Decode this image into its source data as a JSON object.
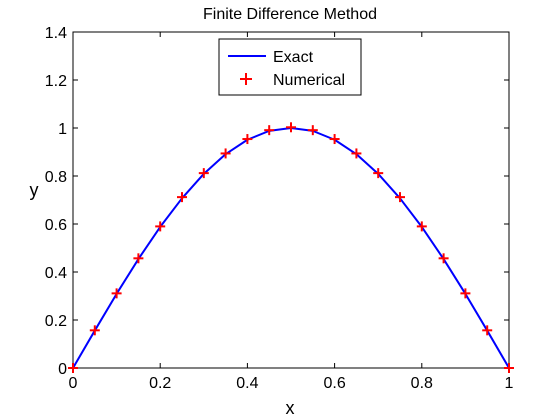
{
  "chart_data": {
    "type": "line",
    "title": "Finite Difference Method",
    "xlabel": "x",
    "ylabel": "y",
    "xlim": [
      0,
      1
    ],
    "ylim": [
      0,
      1.4
    ],
    "xticks": [
      "0",
      "0.2",
      "0.4",
      "0.6",
      "0.8",
      "1"
    ],
    "yticks": [
      "0",
      "0.2",
      "0.4",
      "0.6",
      "0.8",
      "1",
      "1.2",
      "1.4"
    ],
    "grid": false,
    "legend_position": "top-center",
    "series": [
      {
        "name": "Exact",
        "style": "line",
        "color": "#0000ff",
        "x": [
          0,
          0.05,
          0.1,
          0.15,
          0.2,
          0.25,
          0.3,
          0.35,
          0.4,
          0.45,
          0.5,
          0.55,
          0.6,
          0.65,
          0.7,
          0.75,
          0.8,
          0.85,
          0.9,
          0.95,
          1
        ],
        "y": [
          0,
          0.156,
          0.309,
          0.454,
          0.588,
          0.707,
          0.809,
          0.891,
          0.951,
          0.988,
          1.0,
          0.988,
          0.951,
          0.891,
          0.809,
          0.707,
          0.588,
          0.454,
          0.309,
          0.156,
          0
        ]
      },
      {
        "name": "Numerical",
        "style": "plus-markers",
        "color": "#ff0000",
        "x": [
          0,
          0.05,
          0.1,
          0.15,
          0.2,
          0.25,
          0.3,
          0.35,
          0.4,
          0.45,
          0.5,
          0.55,
          0.6,
          0.65,
          0.7,
          0.75,
          0.8,
          0.85,
          0.9,
          0.95,
          1
        ],
        "y": [
          0,
          0.157,
          0.311,
          0.457,
          0.59,
          0.712,
          0.812,
          0.894,
          0.954,
          0.991,
          1.003,
          0.991,
          0.954,
          0.894,
          0.812,
          0.712,
          0.59,
          0.457,
          0.311,
          0.157,
          0
        ]
      }
    ]
  }
}
